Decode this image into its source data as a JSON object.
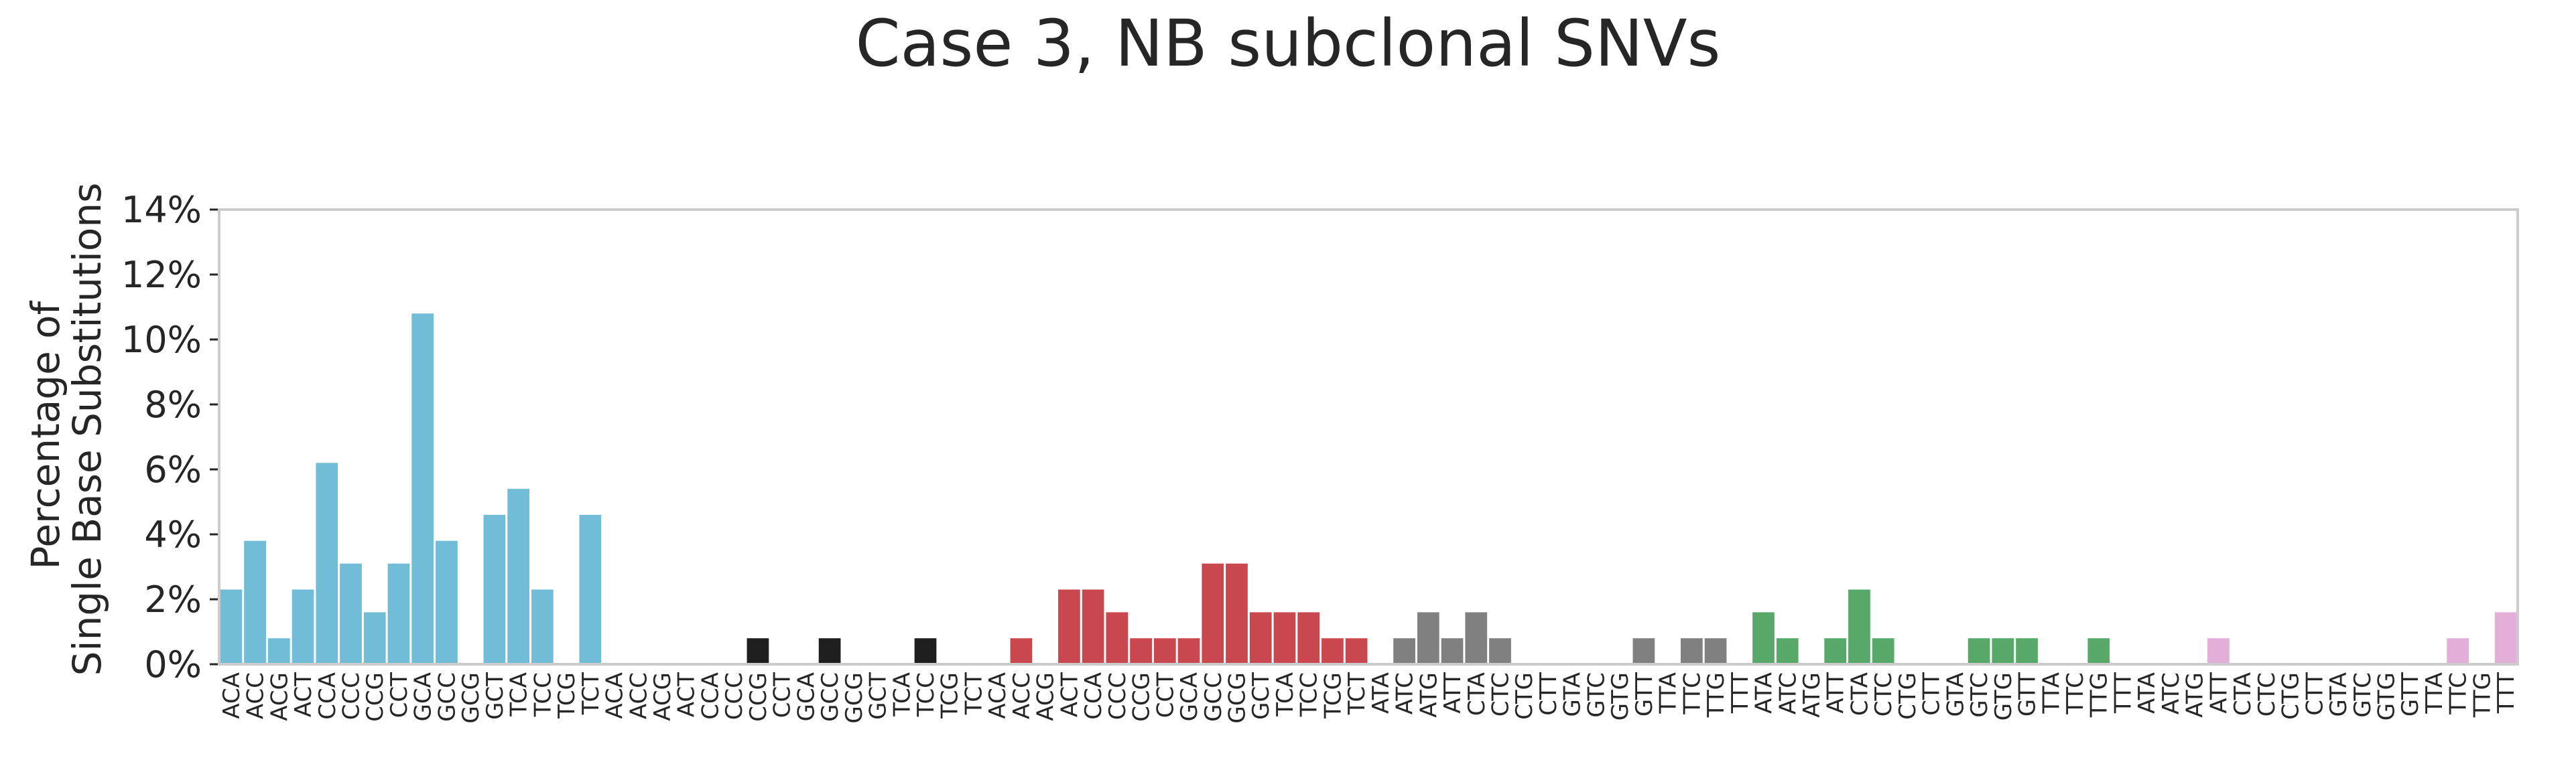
{
  "chart_data": {
    "type": "bar",
    "title": "Case 3, NB subclonal SNVs",
    "xlabel": "",
    "ylabel": [
      "Percentage of",
      "Single Base Substitutions"
    ],
    "ylim": [
      0,
      14
    ],
    "ytick_values": [
      0,
      2,
      4,
      6,
      8,
      10,
      12,
      14
    ],
    "ytick_labels": [
      "0%",
      "2%",
      "4%",
      "6%",
      "8%",
      "10%",
      "12%",
      "14%"
    ],
    "grid": false,
    "legend": "none",
    "categories": [
      "ACA",
      "ACC",
      "ACG",
      "ACT",
      "CCA",
      "CCC",
      "CCG",
      "CCT",
      "GCA",
      "GCC",
      "GCG",
      "GCT",
      "TCA",
      "TCC",
      "TCG",
      "TCT",
      "ACA",
      "ACC",
      "ACG",
      "ACT",
      "CCA",
      "CCC",
      "CCG",
      "CCT",
      "GCA",
      "GCC",
      "GCG",
      "GCT",
      "TCA",
      "TCC",
      "TCG",
      "TCT",
      "ACA",
      "ACC",
      "ACG",
      "ACT",
      "CCA",
      "CCC",
      "CCG",
      "CCT",
      "GCA",
      "GCC",
      "GCG",
      "GCT",
      "TCA",
      "TCC",
      "TCG",
      "TCT",
      "ATA",
      "ATC",
      "ATG",
      "ATT",
      "CTA",
      "CTC",
      "CTG",
      "CTT",
      "GTA",
      "GTC",
      "GTG",
      "GTT",
      "TTA",
      "TTC",
      "TTG",
      "TTT",
      "ATA",
      "ATC",
      "ATG",
      "ATT",
      "CTA",
      "CTC",
      "CTG",
      "CTT",
      "GTA",
      "GTC",
      "GTG",
      "GTT",
      "TTA",
      "TTC",
      "TTG",
      "TTT",
      "ATA",
      "ATC",
      "ATG",
      "ATT",
      "CTA",
      "CTC",
      "CTG",
      "CTT",
      "GTA",
      "GTC",
      "GTG",
      "GTT",
      "TTA",
      "TTC",
      "TTG",
      "TTT"
    ],
    "values": [
      2.3,
      3.8,
      0.8,
      2.3,
      6.2,
      3.1,
      1.6,
      3.1,
      10.8,
      3.8,
      0,
      4.6,
      5.4,
      2.3,
      0,
      4.6,
      0,
      0,
      0,
      0,
      0,
      0,
      0.8,
      0,
      0,
      0.8,
      0,
      0,
      0,
      0.8,
      0,
      0,
      0,
      0.8,
      0,
      2.3,
      2.3,
      1.6,
      0.8,
      0.8,
      0.8,
      3.1,
      3.1,
      1.6,
      1.6,
      1.6,
      0.8,
      0.8,
      0,
      0.8,
      1.6,
      0.8,
      1.6,
      0.8,
      0,
      0,
      0,
      0,
      0,
      0.8,
      0,
      0.8,
      0.8,
      0,
      1.6,
      0.8,
      0,
      0.8,
      2.3,
      0.8,
      0,
      0,
      0,
      0.8,
      0.8,
      0.8,
      0,
      0,
      0.8,
      0,
      0,
      0,
      0,
      0.8,
      0,
      0,
      0,
      0,
      0,
      0,
      0,
      0,
      0,
      0.8,
      0,
      1.6
    ],
    "group_colors": [
      "#71bcd6",
      "#1f1f1f",
      "#c9484f",
      "#808080",
      "#58a86a",
      "#e3aed8"
    ]
  }
}
